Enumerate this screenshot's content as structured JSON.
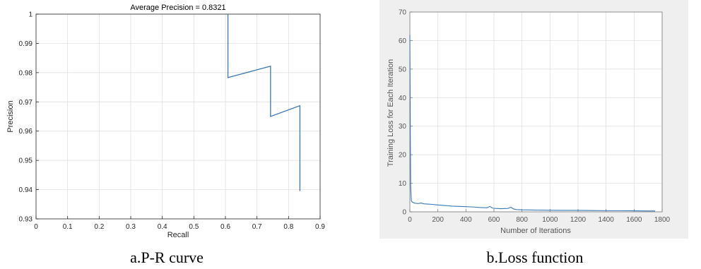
{
  "chart_data": [
    {
      "type": "line",
      "title": "Average Precision = 0.8321",
      "xlabel": "Recall",
      "ylabel": "Precision",
      "xlim": [
        0,
        0.9
      ],
      "ylim": [
        0.93,
        1
      ],
      "xticks": [
        "0",
        "0.1",
        "0.2",
        "0.3",
        "0.4",
        "0.5",
        "0.6",
        "0.7",
        "0.8",
        "0.9"
      ],
      "yticks": [
        "0.93",
        "0.94",
        "0.95",
        "0.96",
        "0.97",
        "0.98",
        "0.99",
        "1"
      ],
      "grid": true,
      "color": "#3a78b5",
      "caption": "a.P-R curve",
      "x": [
        0.608,
        0.608,
        0.743,
        0.743,
        0.836,
        0.836
      ],
      "y": [
        1.0,
        0.9783,
        0.9822,
        0.965,
        0.9687,
        0.9395
      ]
    },
    {
      "type": "line",
      "title": "",
      "xlabel": "Number of Iterations",
      "ylabel": "Training Loss for Each Iteration",
      "xlim": [
        0,
        1800
      ],
      "ylim": [
        0,
        70
      ],
      "xticks": [
        "0",
        "200",
        "400",
        "600",
        "800",
        "1000",
        "1200",
        "1400",
        "1600",
        "1800"
      ],
      "yticks": [
        "0",
        "10",
        "20",
        "30",
        "40",
        "50",
        "60",
        "70"
      ],
      "grid": true,
      "color": "#3a78b5",
      "caption": "b.Loss function",
      "x": [
        0,
        3,
        6,
        10,
        15,
        25,
        40,
        60,
        80,
        100,
        130,
        160,
        200,
        250,
        300,
        350,
        400,
        450,
        500,
        550,
        570,
        590,
        610,
        650,
        700,
        720,
        740,
        760,
        800,
        900,
        1000,
        1100,
        1200,
        1300,
        1400,
        1500,
        1600,
        1700,
        1750
      ],
      "y": [
        62,
        30,
        9,
        4,
        3.5,
        3.2,
        3.0,
        2.9,
        3.1,
        2.8,
        2.7,
        2.6,
        2.4,
        2.2,
        2.0,
        1.9,
        1.8,
        1.7,
        1.5,
        1.4,
        1.9,
        1.3,
        1.2,
        1.1,
        1.2,
        1.6,
        1.0,
        0.8,
        0.7,
        0.6,
        0.55,
        0.5,
        0.5,
        0.45,
        0.4,
        0.4,
        0.35,
        0.3,
        0.3
      ]
    }
  ]
}
